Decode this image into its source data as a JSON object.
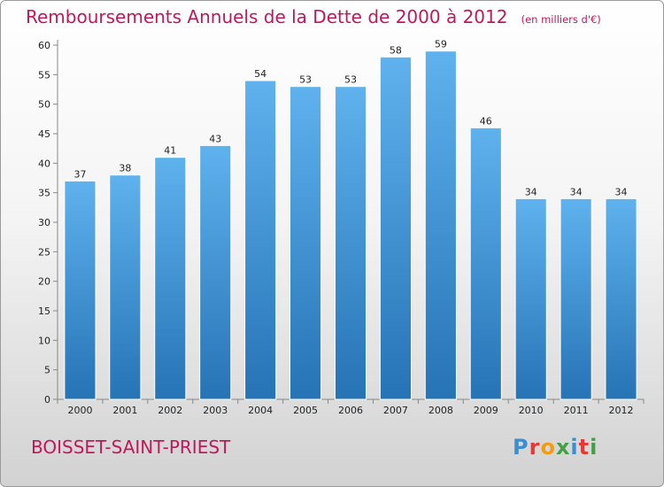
{
  "title": "Remboursements Annuels de la Dette de 2000 à 2012",
  "unit": "(en milliers d'€)",
  "commune": "BOISSET-SAINT-PRIEST",
  "logo": {
    "letters": [
      "P",
      "r",
      "o",
      "x",
      "i",
      "t",
      "i"
    ],
    "colors": [
      "#3a8fd1",
      "#e53935",
      "#f39c12",
      "#43a047",
      "#3a8fd1",
      "#e53935",
      "#43a047"
    ]
  },
  "colors": {
    "accent": "#c2185b",
    "bar_top": "#5fb2ee",
    "bar_bottom": "#2673b5"
  },
  "chart_data": {
    "type": "bar",
    "categories": [
      "2000",
      "2001",
      "2002",
      "2003",
      "2004",
      "2005",
      "2006",
      "2007",
      "2008",
      "2009",
      "2010",
      "2011",
      "2012"
    ],
    "values": [
      37,
      38,
      41,
      43,
      54,
      53,
      53,
      58,
      59,
      46,
      34,
      34,
      34
    ],
    "ylim": [
      0,
      60
    ],
    "yticks": [
      0,
      5,
      10,
      15,
      20,
      25,
      30,
      35,
      40,
      45,
      50,
      55,
      60
    ],
    "grid": false,
    "legend": "none"
  }
}
